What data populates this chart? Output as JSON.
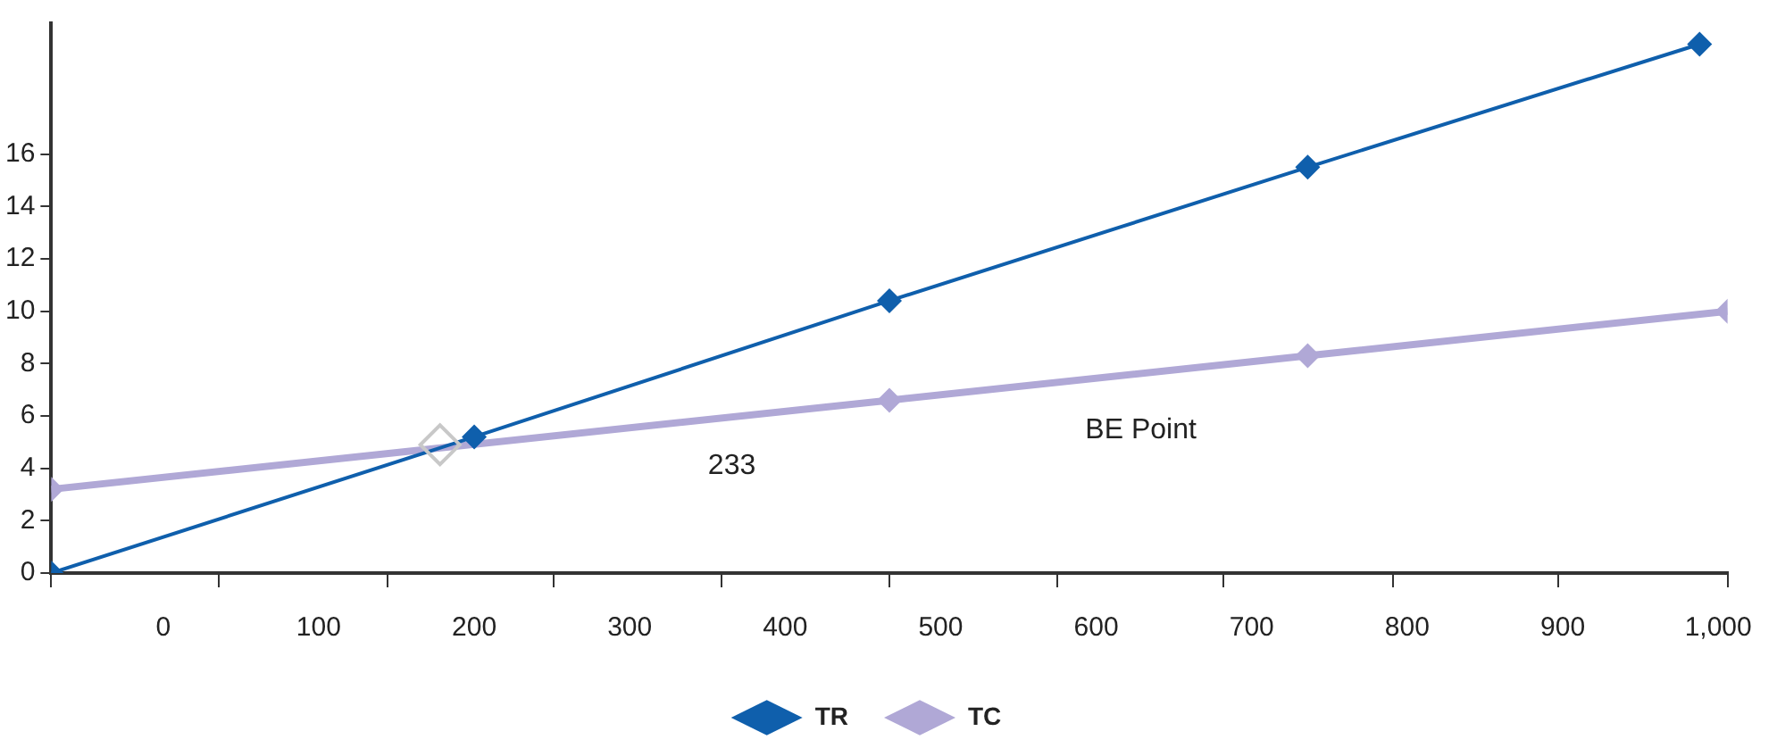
{
  "chart_data": {
    "type": "line",
    "marker": "diamond",
    "legend": "bottom",
    "grid": false,
    "xlim": [
      -72,
      1006
    ],
    "ylim": [
      0,
      21
    ],
    "xticks": [
      {
        "value": -72,
        "label": null
      },
      {
        "value": 36,
        "label": null
      },
      {
        "value": 144,
        "label": null
      },
      {
        "value": 251,
        "label": null
      },
      {
        "value": 359,
        "label": null
      },
      {
        "value": 467,
        "label": null
      },
      {
        "value": 575,
        "label": null
      },
      {
        "value": 682,
        "label": null
      },
      {
        "value": 791,
        "label": null
      },
      {
        "value": 897,
        "label": null
      },
      {
        "value": 1006,
        "label": null
      },
      {
        "value": 0,
        "label": "0"
      },
      {
        "value": 100,
        "label": "100"
      },
      {
        "value": 200,
        "label": "200"
      },
      {
        "value": 300,
        "label": "300"
      },
      {
        "value": 400,
        "label": "400"
      },
      {
        "value": 500,
        "label": "500"
      },
      {
        "value": 600,
        "label": "600"
      },
      {
        "value": 700,
        "label": "700"
      },
      {
        "value": 800,
        "label": "800"
      },
      {
        "value": 900,
        "label": "900"
      },
      {
        "value": 1000,
        "label": "1,000"
      }
    ],
    "yticks": [
      0,
      2,
      4,
      6,
      8,
      10,
      12,
      14,
      16
    ],
    "series": [
      {
        "name": "TR",
        "color": "#0f5fac",
        "x": [
          -72,
          200,
          467,
          736,
          988
        ],
        "values": [
          0,
          5.2,
          10.4,
          15.5,
          20.2
        ]
      },
      {
        "name": "TC",
        "color": "#b0a8d6",
        "x": [
          -72,
          467,
          736,
          1006
        ],
        "values": [
          3.2,
          6.6,
          8.3,
          10.0
        ]
      },
      {
        "type": "scatter",
        "color": "#c8c8c8",
        "x": [
          178
        ],
        "values": [
          4.9
        ]
      }
    ],
    "annotations": [
      "BE Point",
      "233"
    ]
  }
}
